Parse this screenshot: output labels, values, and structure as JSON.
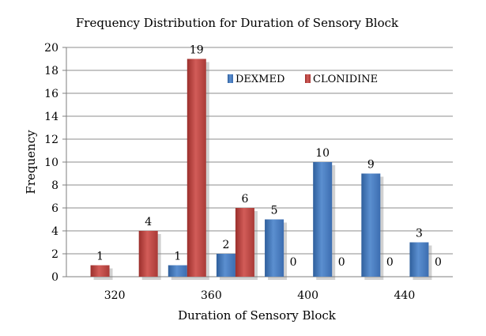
{
  "chart_data": {
    "type": "bar",
    "title": "Frequency Distribution for Duration of Sensory Block",
    "xlabel": "Duration of Sensory Block",
    "ylabel": "Frequency",
    "ylim": [
      0,
      20
    ],
    "ytick_step": 2,
    "x_tick_labels": [
      "320",
      "360",
      "400",
      "440"
    ],
    "grid": "horizontal",
    "legend_position": "top-right",
    "series": [
      {
        "name": "DEXMED",
        "color": "#4a7ebb",
        "values": [
          null,
          null,
          1,
          2,
          5,
          10,
          9,
          3
        ]
      },
      {
        "name": "CLONIDINE",
        "color": "#c0504d",
        "values": [
          1,
          4,
          19,
          6,
          0,
          0,
          0,
          0
        ]
      }
    ],
    "data_labels": [
      {
        "series": "CLONIDINE",
        "group": 0,
        "text": "1"
      },
      {
        "series": "CLONIDINE",
        "group": 1,
        "text": "4"
      },
      {
        "series": "DEXMED",
        "group": 2,
        "text": "1"
      },
      {
        "series": "CLONIDINE",
        "group": 2,
        "text": "19"
      },
      {
        "series": "DEXMED",
        "group": 3,
        "text": "2"
      },
      {
        "series": "CLONIDINE",
        "group": 3,
        "text": "6"
      },
      {
        "series": "DEXMED",
        "group": 4,
        "text": "5"
      },
      {
        "series": "CLONIDINE",
        "group": 4,
        "text": "0"
      },
      {
        "series": "DEXMED",
        "group": 5,
        "text": "10"
      },
      {
        "series": "CLONIDINE",
        "group": 5,
        "text": "0"
      },
      {
        "series": "DEXMED",
        "group": 6,
        "text": "9"
      },
      {
        "series": "CLONIDINE",
        "group": 6,
        "text": "0"
      },
      {
        "series": "DEXMED",
        "group": 7,
        "text": "3"
      },
      {
        "series": "CLONIDINE",
        "group": 7,
        "text": "0"
      }
    ]
  }
}
